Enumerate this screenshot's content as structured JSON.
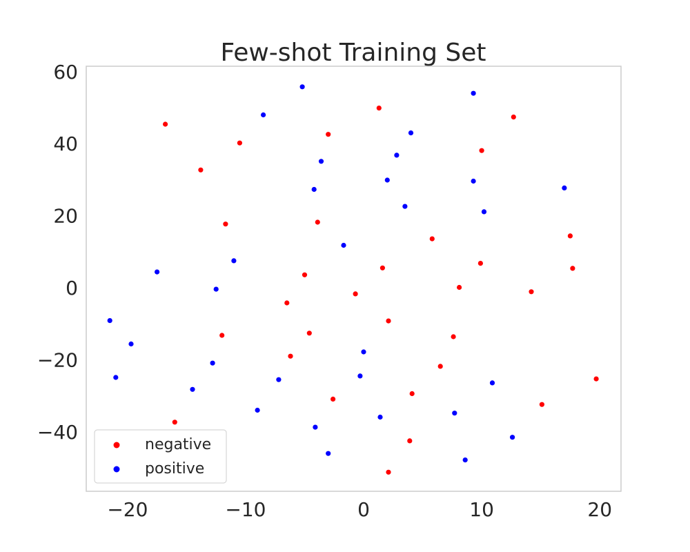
{
  "chart_data": {
    "type": "scatter",
    "title": "Few-shot Training Set",
    "xlabel": "",
    "ylabel": "",
    "xlim": [
      -23.5,
      21.8
    ],
    "ylim": [
      -56.5,
      61.5
    ],
    "x_ticks": [
      -20,
      -10,
      0,
      10,
      20
    ],
    "x_tick_labels": [
      "−20",
      "−10",
      "0",
      "10",
      "20"
    ],
    "y_ticks": [
      60,
      40,
      20,
      0,
      -20,
      -40
    ],
    "y_tick_labels": [
      "60",
      "40",
      "20",
      "0",
      "−20",
      "−40"
    ],
    "grid": false,
    "legend_position": "lower-left",
    "series": [
      {
        "name": "negative",
        "color": "#ff0000",
        "points": [
          [
            -16.8,
            45.4
          ],
          [
            -10.5,
            40.2
          ],
          [
            -3.0,
            42.6
          ],
          [
            1.3,
            49.9
          ],
          [
            12.7,
            47.4
          ],
          [
            10.0,
            38.1
          ],
          [
            -13.8,
            32.7
          ],
          [
            -11.7,
            17.7
          ],
          [
            -3.9,
            18.2
          ],
          [
            5.8,
            13.6
          ],
          [
            17.5,
            14.4
          ],
          [
            1.6,
            5.5
          ],
          [
            -5.0,
            3.6
          ],
          [
            9.9,
            6.8
          ],
          [
            17.7,
            5.4
          ],
          [
            8.1,
            0.1
          ],
          [
            14.2,
            -1.1
          ],
          [
            -0.7,
            -1.7
          ],
          [
            -6.5,
            -4.2
          ],
          [
            2.1,
            -9.2
          ],
          [
            -12.0,
            -13.2
          ],
          [
            -4.6,
            -12.6
          ],
          [
            7.6,
            -13.6
          ],
          [
            -6.2,
            -19.0
          ],
          [
            6.5,
            -21.8
          ],
          [
            19.7,
            -25.3
          ],
          [
            -2.6,
            -30.9
          ],
          [
            4.1,
            -29.4
          ],
          [
            15.1,
            -32.4
          ],
          [
            -16.0,
            -37.3
          ],
          [
            3.9,
            -42.5
          ],
          [
            2.1,
            -51.2
          ]
        ]
      },
      {
        "name": "positive",
        "color": "#0000ff",
        "points": [
          [
            -5.2,
            55.8
          ],
          [
            9.3,
            54.0
          ],
          [
            -8.5,
            48.0
          ],
          [
            4.0,
            43.0
          ],
          [
            2.8,
            36.8
          ],
          [
            -3.6,
            35.1
          ],
          [
            2.0,
            29.9
          ],
          [
            9.3,
            29.6
          ],
          [
            -4.2,
            27.3
          ],
          [
            17.0,
            27.7
          ],
          [
            3.5,
            22.6
          ],
          [
            10.2,
            21.1
          ],
          [
            -1.7,
            11.8
          ],
          [
            -11.0,
            7.5
          ],
          [
            -17.5,
            4.4
          ],
          [
            -12.5,
            -0.4
          ],
          [
            -21.5,
            -9.1
          ],
          [
            -19.7,
            -15.6
          ],
          [
            -12.8,
            -20.9
          ],
          [
            0.0,
            -17.8
          ],
          [
            -21.0,
            -24.9
          ],
          [
            -7.2,
            -25.5
          ],
          [
            -0.3,
            -24.5
          ],
          [
            10.9,
            -26.4
          ],
          [
            -14.5,
            -28.2
          ],
          [
            -9.0,
            -34.0
          ],
          [
            1.4,
            -35.9
          ],
          [
            7.7,
            -34.8
          ],
          [
            -4.1,
            -38.7
          ],
          [
            12.6,
            -41.5
          ],
          [
            -3.0,
            -46.0
          ],
          [
            8.6,
            -47.8
          ]
        ]
      }
    ]
  }
}
